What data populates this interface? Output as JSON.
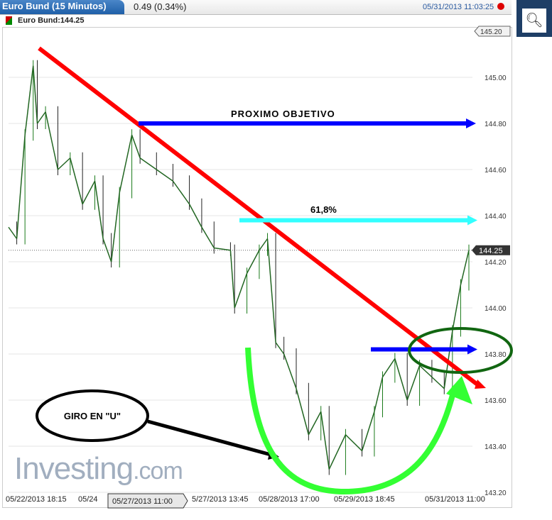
{
  "header": {
    "tab": "Euro Bund (15 Minutos)",
    "change": "0.49 (0.34%)",
    "timestamp": "05/31/2013 11:03:25",
    "search_icon": "search-icon",
    "record_icon": "red-dot-icon"
  },
  "legend": {
    "label": "Euro Bund:144.25"
  },
  "logo": {
    "main": "Investing",
    "suffix": ".com"
  },
  "chart_data": {
    "type": "candlestick-line",
    "ylim": [
      143.2,
      145.2
    ],
    "yticks": [
      "145.20",
      "145.00",
      "144.80",
      "144.60",
      "144.40",
      "144.20",
      "144.00",
      "143.80",
      "143.60",
      "143.40",
      "143.20"
    ],
    "xticks": [
      "05/22/2013 18:15",
      "05/24",
      "05/27/2013 11:00",
      "5/27/2013 13:45",
      "05/28/2013 17:00",
      "05/29/2013 18:45",
      "05/31/2013 11:00"
    ],
    "x_hover_label": "05/27/2013 11:00",
    "y_top_label": "145.20",
    "last_price": "144.25",
    "last_price_value": 144.25,
    "price": [
      [
        0,
        144.35
      ],
      [
        4,
        144.3
      ],
      [
        8,
        144.75
      ],
      [
        12,
        145.05
      ],
      [
        14,
        144.8
      ],
      [
        18,
        144.85
      ],
      [
        24,
        144.6
      ],
      [
        30,
        144.65
      ],
      [
        36,
        144.45
      ],
      [
        42,
        144.55
      ],
      [
        46,
        144.3
      ],
      [
        50,
        144.2
      ],
      [
        54,
        144.5
      ],
      [
        60,
        144.75
      ],
      [
        64,
        144.65
      ],
      [
        72,
        144.6
      ],
      [
        80,
        144.55
      ],
      [
        88,
        144.45
      ],
      [
        94,
        144.35
      ],
      [
        100,
        144.26
      ],
      [
        108,
        144.25
      ],
      [
        110,
        144.0
      ],
      [
        116,
        144.15
      ],
      [
        122,
        144.25
      ],
      [
        126,
        144.3
      ],
      [
        130,
        143.85
      ],
      [
        134,
        143.8
      ],
      [
        140,
        143.65
      ],
      [
        146,
        143.45
      ],
      [
        152,
        143.55
      ],
      [
        156,
        143.3
      ],
      [
        164,
        143.45
      ],
      [
        172,
        143.38
      ],
      [
        178,
        143.55
      ],
      [
        182,
        143.7
      ],
      [
        188,
        143.78
      ],
      [
        194,
        143.6
      ],
      [
        200,
        143.75
      ],
      [
        206,
        143.7
      ],
      [
        212,
        143.65
      ],
      [
        216,
        143.9
      ],
      [
        220,
        144.1
      ],
      [
        224,
        144.25
      ]
    ],
    "series_color": "#226622",
    "annotations": [
      {
        "type": "trendline",
        "color": "#ff0000"
      },
      {
        "type": "arrow",
        "label": "PROXIMO OBJETIVO",
        "level": 144.8,
        "color": "#0000ff"
      },
      {
        "type": "arrow",
        "label": "61,8%",
        "level": 144.38,
        "color": "#33ffff"
      },
      {
        "type": "arrow",
        "level": 143.82,
        "color": "#0000ff"
      },
      {
        "type": "ellipse",
        "color": "#116611"
      },
      {
        "type": "callout",
        "label": "GIRO EN \"U\""
      },
      {
        "type": "curve",
        "color": "#33ff33"
      }
    ]
  }
}
